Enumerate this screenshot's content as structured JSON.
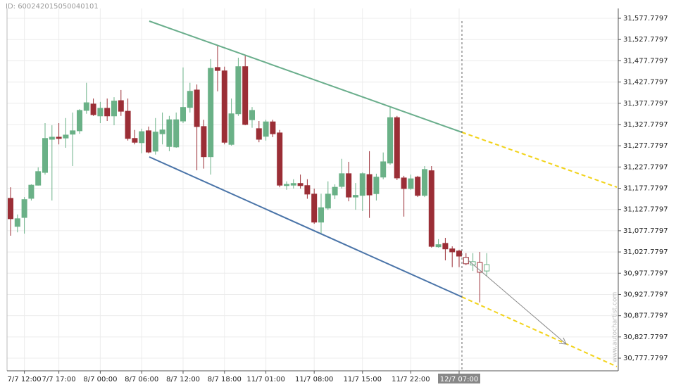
{
  "page_id": "ID: 600242015050040101",
  "watermark": "www.autochartist.com",
  "chart_data": {
    "type": "candlestick",
    "up_color": "#6ab187",
    "down_color": "#9b2e36",
    "grid": true,
    "highlighted_category": 65,
    "ylim": [
      30748,
      31601
    ],
    "yticks": [
      {
        "value": 31577.7797,
        "label": "31,577.7797"
      },
      {
        "value": 31527.7797,
        "label": "31,527.7797"
      },
      {
        "value": 31477.7797,
        "label": "31,477.7797"
      },
      {
        "value": 31427.7797,
        "label": "31,427.7797"
      },
      {
        "value": 31377.7797,
        "label": "31,377.7797"
      },
      {
        "value": 31327.7797,
        "label": "31,327.7797"
      },
      {
        "value": 31277.7797,
        "label": "31,277.7797"
      },
      {
        "value": 31227.7797,
        "label": "31,227.7797"
      },
      {
        "value": 31177.7797,
        "label": "31,177.7797"
      },
      {
        "value": 31127.7797,
        "label": "31,127.7797"
      },
      {
        "value": 31077.7797,
        "label": "31,077.7797"
      },
      {
        "value": 31027.7797,
        "label": "31,027.7797"
      },
      {
        "value": 30977.7797,
        "label": "30,977.7797"
      },
      {
        "value": 30927.7797,
        "label": "30,927.7797"
      },
      {
        "value": 30877.7797,
        "label": "30,877.7797"
      },
      {
        "value": 30827.7797,
        "label": "30,827.7797"
      },
      {
        "value": 30777.7797,
        "label": "30,777.7797"
      }
    ],
    "categories": [
      null,
      null,
      "7/7 12:00",
      null,
      null,
      null,
      null,
      "7/7 17:00",
      null,
      null,
      null,
      null,
      null,
      "8/7 00:00",
      null,
      null,
      null,
      null,
      null,
      "8/7 06:00",
      null,
      null,
      null,
      null,
      null,
      "8/7 12:00",
      null,
      null,
      null,
      null,
      null,
      "8/7 18:00",
      null,
      null,
      null,
      null,
      null,
      "11/7 01:00",
      null,
      null,
      null,
      null,
      null,
      null,
      "11/7 08:00",
      null,
      null,
      null,
      null,
      null,
      null,
      "11/7 15:00",
      null,
      null,
      null,
      null,
      null,
      null,
      "11/7 22:00",
      null,
      null,
      null,
      null,
      null,
      null,
      "12/7 07:00",
      null,
      null,
      null,
      null
    ],
    "candles": [
      {
        "o": 31154,
        "h": 31180,
        "l": 31066,
        "c": 31106
      },
      {
        "o": 31088,
        "h": 31116,
        "l": 31074,
        "c": 31106
      },
      {
        "o": 31109,
        "h": 31157,
        "l": 31071,
        "c": 31151
      },
      {
        "o": 31154,
        "h": 31187,
        "l": 31149,
        "c": 31185
      },
      {
        "o": 31185,
        "h": 31227,
        "l": 31184,
        "c": 31217
      },
      {
        "o": 31215,
        "h": 31331,
        "l": 31210,
        "c": 31295
      },
      {
        "o": 31293,
        "h": 31326,
        "l": 31149,
        "c": 31298
      },
      {
        "o": 31298,
        "h": 31331,
        "l": 31281,
        "c": 31295
      },
      {
        "o": 31296,
        "h": 31343,
        "l": 31273,
        "c": 31303
      },
      {
        "o": 31305,
        "h": 31356,
        "l": 31230,
        "c": 31313
      },
      {
        "o": 31313,
        "h": 31364,
        "l": 31306,
        "c": 31361
      },
      {
        "o": 31361,
        "h": 31426,
        "l": 31353,
        "c": 31379
      },
      {
        "o": 31376,
        "h": 31389,
        "l": 31348,
        "c": 31351
      },
      {
        "o": 31348,
        "h": 31381,
        "l": 31331,
        "c": 31366
      },
      {
        "o": 31366,
        "h": 31389,
        "l": 31336,
        "c": 31348
      },
      {
        "o": 31348,
        "h": 31392,
        "l": 31326,
        "c": 31383
      },
      {
        "o": 31384,
        "h": 31409,
        "l": 31348,
        "c": 31359
      },
      {
        "o": 31359,
        "h": 31389,
        "l": 31290,
        "c": 31295
      },
      {
        "o": 31295,
        "h": 31315,
        "l": 31281,
        "c": 31286
      },
      {
        "o": 31285,
        "h": 31318,
        "l": 31260,
        "c": 31311
      },
      {
        "o": 31313,
        "h": 31323,
        "l": 31260,
        "c": 31263
      },
      {
        "o": 31265,
        "h": 31343,
        "l": 31257,
        "c": 31310
      },
      {
        "o": 31306,
        "h": 31356,
        "l": 31281,
        "c": 31315
      },
      {
        "o": 31276,
        "h": 31348,
        "l": 31265,
        "c": 31339
      },
      {
        "o": 31275,
        "h": 31356,
        "l": 31273,
        "c": 31339
      },
      {
        "o": 31336,
        "h": 31462,
        "l": 31331,
        "c": 31368
      },
      {
        "o": 31368,
        "h": 31426,
        "l": 31356,
        "c": 31406
      },
      {
        "o": 31409,
        "h": 31422,
        "l": 31220,
        "c": 31323
      },
      {
        "o": 31323,
        "h": 31339,
        "l": 31224,
        "c": 31252
      },
      {
        "o": 31252,
        "h": 31482,
        "l": 31210,
        "c": 31460
      },
      {
        "o": 31462,
        "h": 31513,
        "l": 31406,
        "c": 31455
      },
      {
        "o": 31454,
        "h": 31464,
        "l": 31281,
        "c": 31286
      },
      {
        "o": 31281,
        "h": 31389,
        "l": 31278,
        "c": 31353
      },
      {
        "o": 31353,
        "h": 31485,
        "l": 31348,
        "c": 31464
      },
      {
        "o": 31464,
        "h": 31492,
        "l": 31326,
        "c": 31328
      },
      {
        "o": 31339,
        "h": 31369,
        "l": 31320,
        "c": 31361
      },
      {
        "o": 31318,
        "h": 31336,
        "l": 31286,
        "c": 31293
      },
      {
        "o": 31300,
        "h": 31339,
        "l": 31290,
        "c": 31334
      },
      {
        "o": 31334,
        "h": 31339,
        "l": 31298,
        "c": 31306
      },
      {
        "o": 31308,
        "h": 31315,
        "l": 31180,
        "c": 31185
      },
      {
        "o": 31184,
        "h": 31194,
        "l": 31174,
        "c": 31187
      },
      {
        "o": 31185,
        "h": 31199,
        "l": 31177,
        "c": 31189
      },
      {
        "o": 31189,
        "h": 31210,
        "l": 31177,
        "c": 31184
      },
      {
        "o": 31184,
        "h": 31199,
        "l": 31153,
        "c": 31164
      },
      {
        "o": 31164,
        "h": 31177,
        "l": 31094,
        "c": 31098
      },
      {
        "o": 31098,
        "h": 31165,
        "l": 31069,
        "c": 31132
      },
      {
        "o": 31131,
        "h": 31194,
        "l": 31127,
        "c": 31164
      },
      {
        "o": 31162,
        "h": 31187,
        "l": 31152,
        "c": 31180
      },
      {
        "o": 31182,
        "h": 31247,
        "l": 31177,
        "c": 31212
      },
      {
        "o": 31212,
        "h": 31240,
        "l": 31147,
        "c": 31157
      },
      {
        "o": 31157,
        "h": 31190,
        "l": 31127,
        "c": 31161
      },
      {
        "o": 31161,
        "h": 31215,
        "l": 31124,
        "c": 31212
      },
      {
        "o": 31210,
        "h": 31265,
        "l": 31108,
        "c": 31162
      },
      {
        "o": 31165,
        "h": 31212,
        "l": 31149,
        "c": 31204
      },
      {
        "o": 31204,
        "h": 31262,
        "l": 31199,
        "c": 31240
      },
      {
        "o": 31237,
        "h": 31368,
        "l": 31233,
        "c": 31344
      },
      {
        "o": 31344,
        "h": 31348,
        "l": 31197,
        "c": 31202
      },
      {
        "o": 31202,
        "h": 31207,
        "l": 31111,
        "c": 31177
      },
      {
        "o": 31177,
        "h": 31210,
        "l": 31174,
        "c": 31200
      },
      {
        "o": 31204,
        "h": 31207,
        "l": 31157,
        "c": 31161
      },
      {
        "o": 31161,
        "h": 31230,
        "l": 31157,
        "c": 31222
      },
      {
        "o": 31219,
        "h": 31230,
        "l": 31038,
        "c": 31041
      },
      {
        "o": 31040,
        "h": 31058,
        "l": 31038,
        "c": 31045
      },
      {
        "o": 31048,
        "h": 31061,
        "l": 31008,
        "c": 31035
      },
      {
        "o": 31035,
        "h": 31041,
        "l": 30992,
        "c": 31028
      },
      {
        "o": 31030,
        "h": 31033,
        "l": 30992,
        "c": 31018
      },
      {
        "o": 31015,
        "h": 31025,
        "l": 30997,
        "c": 31000,
        "hollow": true
      },
      {
        "o": 30997,
        "h": 31025,
        "l": 30983,
        "c": 31005,
        "hollow": true
      },
      {
        "o": 31003,
        "h": 31028,
        "l": 30909,
        "c": 30980,
        "hollow": true
      },
      {
        "o": 30983,
        "h": 31025,
        "l": 30970,
        "c": 30998,
        "hollow": true
      }
    ]
  }
}
